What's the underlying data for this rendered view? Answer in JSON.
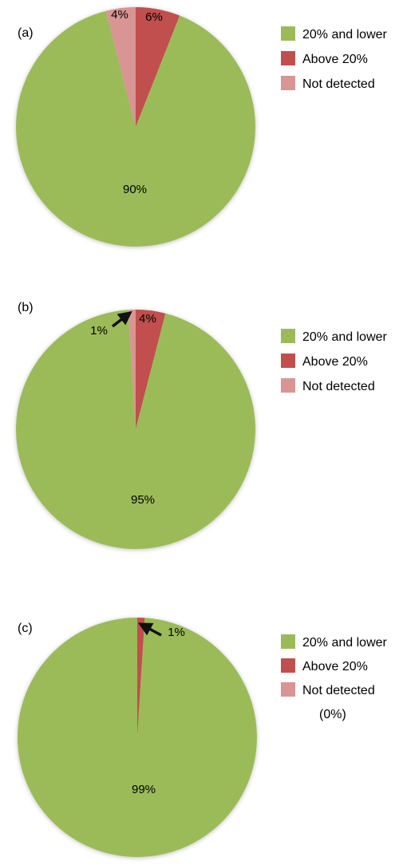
{
  "chart_data": [
    {
      "type": "pie",
      "panel_label": "(a)",
      "start": "top, clockwise",
      "slices": [
        {
          "name": "Above 20%",
          "value": 6,
          "label": "6%",
          "color": "#c0504d"
        },
        {
          "name": "20% and lower",
          "value": 90,
          "label": "90%",
          "color": "#9bbb59"
        },
        {
          "name": "Not detected",
          "value": 4,
          "label": "4%",
          "color": "#d99594"
        }
      ],
      "legend": {
        "placement": "right",
        "entries": [
          {
            "label": "20% and lower",
            "color": "#9bbb59"
          },
          {
            "label": "Above 20%",
            "color": "#c0504d"
          },
          {
            "label": "Not detected",
            "color": "#d99594"
          }
        ],
        "note": ""
      }
    },
    {
      "type": "pie",
      "panel_label": "(b)",
      "start": "top, clockwise",
      "slices": [
        {
          "name": "Above 20%",
          "value": 4,
          "label": "4%",
          "color": "#c0504d"
        },
        {
          "name": "20% and lower",
          "value": 95,
          "label": "95%",
          "color": "#9bbb59"
        },
        {
          "name": "Not detected",
          "value": 1,
          "label": "1%",
          "color": "#d99594"
        }
      ],
      "legend": {
        "placement": "right",
        "entries": [
          {
            "label": "20% and lower",
            "color": "#9bbb59"
          },
          {
            "label": "Above 20%",
            "color": "#c0504d"
          },
          {
            "label": "Not detected",
            "color": "#d99594"
          }
        ],
        "note": ""
      }
    },
    {
      "type": "pie",
      "panel_label": "(c)",
      "start": "top, clockwise",
      "slices": [
        {
          "name": "Above 20%",
          "value": 1,
          "label": "1%",
          "color": "#c0504d"
        },
        {
          "name": "20% and lower",
          "value": 99,
          "label": "99%",
          "color": "#9bbb59"
        },
        {
          "name": "Not detected",
          "value": 0,
          "label": "",
          "color": "#d99594"
        }
      ],
      "legend": {
        "placement": "right",
        "entries": [
          {
            "label": "20% and lower",
            "color": "#9bbb59"
          },
          {
            "label": "Above 20%",
            "color": "#c0504d"
          },
          {
            "label": "Not detected",
            "color": "#d99594"
          }
        ],
        "note": "(0%)"
      }
    }
  ]
}
